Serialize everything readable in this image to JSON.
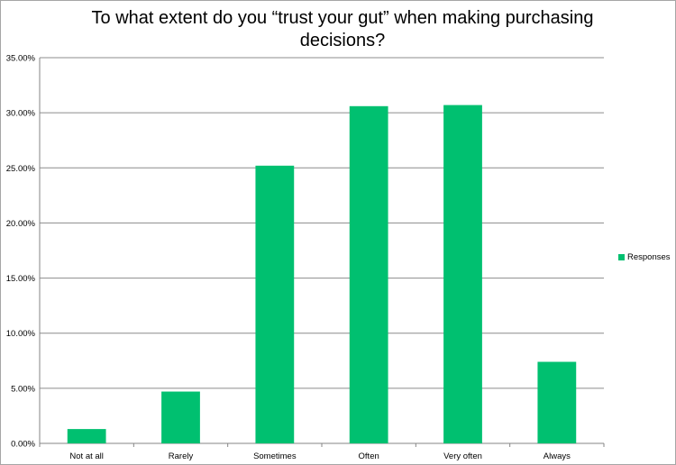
{
  "chart_data": {
    "type": "bar",
    "title": "To what extent do you “trust your gut” when making purchasing decisions?",
    "categories": [
      "Not at all",
      "Rarely",
      "Sometimes",
      "Often",
      "Very often",
      "Always"
    ],
    "series": [
      {
        "name": "Responses",
        "values": [
          1.3,
          4.7,
          25.2,
          30.6,
          30.7,
          7.4
        ],
        "color": "#00c070"
      }
    ],
    "y_ticks": [
      "0.00%",
      "5.00%",
      "10.00%",
      "15.00%",
      "20.00%",
      "25.00%",
      "30.00%",
      "35.00%"
    ],
    "ylim": [
      0,
      35
    ],
    "grid": true,
    "legend_position": "right"
  }
}
